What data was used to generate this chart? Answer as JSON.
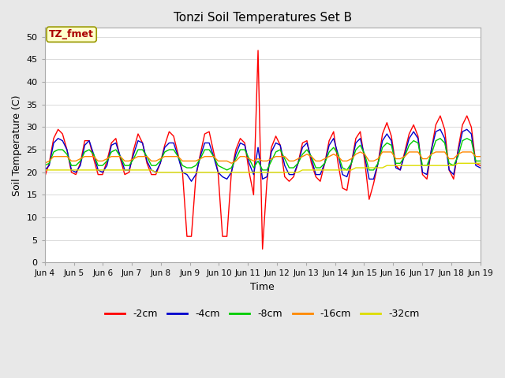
{
  "title": "Tonzi Soil Temperatures Set B",
  "xlabel": "Time",
  "ylabel": "Soil Temperature (C)",
  "ylim": [
    0,
    52
  ],
  "yticks": [
    0,
    5,
    10,
    15,
    20,
    25,
    30,
    35,
    40,
    45,
    50
  ],
  "annotation_label": "TZ_fmet",
  "annotation_color": "#aa0000",
  "annotation_bg": "#ffffcc",
  "annotation_border": "#999900",
  "fig_bg": "#e8e8e8",
  "plot_bg": "#ffffff",
  "grid_color": "#dddddd",
  "series_colors": {
    "-2cm": "#ff0000",
    "-4cm": "#0000cc",
    "-8cm": "#00cc00",
    "-16cm": "#ff8800",
    "-32cm": "#dddd00"
  },
  "legend_entries": [
    "-2cm",
    "-4cm",
    "-8cm",
    "-16cm",
    "-32cm"
  ],
  "x_tick_labels": [
    "Jun 4",
    "Jun 5",
    "Jun 6",
    "Jun 7",
    "Jun 8",
    "Jun 9",
    "Jun 10",
    "Jun 11",
    "Jun 12",
    "Jun 13",
    "Jun 14",
    "Jun 15",
    "Jun 16",
    "Jun 17",
    "Jun 18",
    "Jun 19"
  ],
  "series": {
    "-2cm": [
      19.0,
      22.0,
      27.5,
      29.5,
      28.5,
      25.0,
      20.0,
      19.5,
      22.0,
      27.0,
      27.0,
      23.0,
      19.5,
      19.5,
      22.5,
      26.5,
      27.5,
      23.0,
      19.5,
      20.0,
      25.0,
      28.5,
      26.5,
      22.0,
      19.5,
      19.5,
      22.0,
      26.0,
      29.0,
      28.0,
      24.0,
      20.0,
      5.8,
      5.8,
      19.0,
      24.0,
      28.5,
      29.0,
      24.5,
      20.0,
      5.8,
      5.8,
      20.0,
      25.0,
      27.5,
      26.5,
      20.0,
      15.0,
      47.0,
      3.0,
      18.0,
      25.5,
      28.0,
      26.0,
      19.0,
      18.0,
      19.0,
      22.0,
      26.5,
      27.0,
      22.0,
      19.0,
      18.0,
      22.0,
      27.0,
      29.0,
      22.0,
      16.5,
      16.0,
      22.0,
      27.5,
      29.0,
      22.5,
      14.0,
      17.5,
      22.0,
      28.5,
      31.0,
      28.0,
      21.5,
      20.5,
      24.5,
      28.5,
      30.5,
      28.0,
      19.5,
      18.5,
      25.0,
      30.5,
      32.5,
      29.5,
      20.5,
      18.5,
      25.0,
      30.5,
      32.5,
      30.0,
      22.0,
      21.5
    ],
    "-4cm": [
      20.5,
      21.5,
      26.5,
      27.5,
      27.0,
      25.0,
      20.5,
      20.0,
      21.5,
      26.0,
      27.0,
      24.0,
      20.5,
      20.0,
      21.5,
      26.0,
      26.5,
      23.5,
      20.5,
      20.5,
      24.0,
      27.0,
      26.5,
      22.5,
      20.5,
      20.0,
      22.0,
      25.5,
      26.5,
      26.5,
      23.5,
      20.0,
      19.5,
      18.0,
      19.5,
      23.5,
      26.5,
      26.5,
      23.5,
      20.0,
      19.0,
      18.5,
      20.0,
      24.0,
      26.5,
      26.0,
      22.0,
      19.5,
      25.5,
      18.5,
      19.0,
      24.5,
      26.5,
      26.0,
      21.5,
      19.5,
      19.5,
      22.0,
      25.5,
      26.5,
      23.0,
      19.5,
      19.5,
      22.0,
      26.0,
      27.5,
      24.0,
      19.5,
      19.0,
      22.0,
      26.5,
      27.5,
      23.5,
      18.5,
      18.5,
      22.0,
      27.0,
      28.5,
      27.0,
      21.0,
      20.5,
      24.0,
      27.5,
      29.0,
      27.5,
      20.0,
      19.5,
      25.0,
      29.0,
      29.5,
      27.5,
      20.5,
      19.5,
      24.5,
      29.0,
      29.5,
      28.5,
      21.5,
      21.0
    ],
    "-8cm": [
      21.5,
      22.0,
      24.5,
      25.0,
      25.0,
      24.0,
      21.5,
      21.5,
      22.5,
      24.5,
      25.0,
      24.0,
      21.5,
      21.5,
      22.5,
      24.5,
      25.0,
      23.5,
      21.5,
      21.5,
      23.0,
      25.0,
      25.0,
      23.5,
      21.5,
      21.5,
      22.5,
      24.5,
      25.0,
      25.0,
      23.5,
      21.5,
      21.0,
      21.0,
      21.5,
      23.0,
      25.0,
      25.0,
      23.5,
      21.5,
      21.0,
      20.5,
      21.0,
      23.0,
      25.0,
      25.0,
      23.0,
      21.0,
      22.5,
      20.5,
      20.5,
      22.5,
      24.5,
      25.0,
      23.0,
      21.0,
      21.0,
      22.0,
      24.0,
      25.0,
      23.5,
      21.0,
      21.0,
      22.0,
      24.5,
      25.5,
      24.0,
      21.0,
      20.5,
      22.0,
      25.0,
      26.0,
      24.0,
      20.5,
      20.5,
      22.0,
      25.5,
      26.5,
      26.0,
      22.0,
      22.0,
      23.5,
      26.0,
      27.0,
      26.5,
      21.5,
      21.5,
      24.0,
      27.0,
      27.5,
      26.5,
      22.0,
      21.5,
      23.5,
      27.0,
      27.5,
      27.0,
      22.5,
      22.5
    ],
    "-16cm": [
      22.0,
      22.5,
      23.5,
      23.5,
      23.5,
      23.5,
      22.5,
      22.5,
      23.0,
      23.5,
      23.5,
      23.5,
      22.5,
      22.5,
      23.0,
      23.5,
      23.5,
      23.5,
      22.5,
      22.5,
      23.0,
      23.5,
      23.5,
      23.5,
      22.5,
      22.5,
      23.0,
      23.5,
      23.5,
      23.5,
      23.5,
      22.5,
      22.5,
      22.5,
      22.5,
      23.0,
      23.5,
      23.5,
      23.5,
      22.5,
      22.5,
      22.5,
      22.0,
      22.5,
      23.5,
      23.5,
      23.0,
      22.5,
      23.0,
      22.5,
      22.5,
      23.0,
      23.5,
      23.5,
      23.5,
      22.5,
      22.5,
      23.0,
      23.5,
      24.0,
      23.5,
      22.5,
      22.5,
      23.0,
      23.5,
      24.0,
      23.5,
      22.5,
      22.5,
      23.0,
      24.0,
      24.5,
      24.0,
      22.5,
      22.5,
      23.0,
      24.5,
      24.5,
      24.5,
      23.0,
      23.0,
      23.5,
      24.5,
      24.5,
      24.5,
      23.0,
      23.0,
      24.0,
      24.5,
      24.5,
      24.5,
      23.0,
      23.0,
      24.0,
      24.5,
      24.5,
      24.5,
      23.5,
      23.5
    ],
    "-32cm": [
      20.5,
      20.5,
      20.5,
      20.5,
      20.5,
      20.5,
      20.5,
      20.5,
      20.5,
      20.5,
      20.5,
      20.5,
      20.5,
      20.5,
      20.5,
      20.5,
      20.5,
      20.5,
      20.5,
      20.5,
      20.5,
      20.5,
      20.5,
      20.5,
      20.5,
      20.0,
      20.0,
      20.0,
      20.0,
      20.0,
      20.0,
      20.0,
      20.0,
      20.0,
      20.0,
      20.0,
      20.0,
      20.0,
      20.0,
      20.0,
      20.0,
      20.0,
      20.0,
      20.0,
      20.0,
      20.0,
      20.0,
      20.0,
      20.0,
      20.0,
      20.0,
      20.0,
      20.0,
      20.0,
      20.0,
      20.0,
      20.0,
      20.0,
      20.5,
      20.5,
      20.5,
      20.5,
      20.5,
      20.5,
      20.5,
      20.5,
      20.5,
      20.5,
      20.5,
      20.5,
      21.0,
      21.0,
      21.0,
      21.0,
      21.0,
      21.0,
      21.0,
      21.5,
      21.5,
      21.5,
      21.5,
      21.5,
      21.5,
      21.5,
      21.5,
      21.5,
      21.5,
      21.5,
      21.5,
      21.5,
      21.5,
      21.5,
      21.5,
      22.0,
      22.0,
      22.0,
      22.0,
      22.0,
      22.0
    ]
  }
}
